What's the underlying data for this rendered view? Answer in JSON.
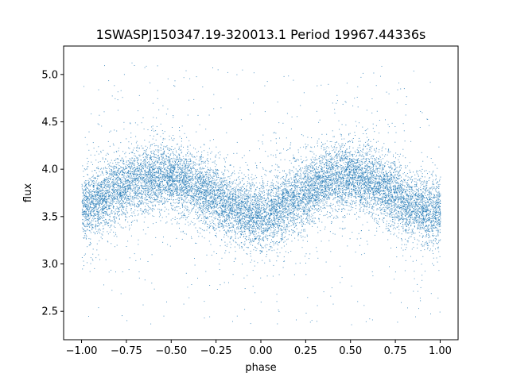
{
  "chart_data": {
    "type": "scatter",
    "title": "1SWASPJ150347.19-320013.1 Period 19967.44336s",
    "xlabel": "phase",
    "ylabel": "flux",
    "xlim": [
      -1.1,
      1.1
    ],
    "ylim": [
      2.2,
      5.3
    ],
    "x_ticks": [
      -1.0,
      -0.75,
      -0.5,
      -0.25,
      0.0,
      0.25,
      0.5,
      0.75,
      1.0
    ],
    "x_tick_labels": [
      "−1.00",
      "−0.75",
      "−0.50",
      "−0.25",
      "0.00",
      "0.25",
      "0.50",
      "0.75",
      "1.00"
    ],
    "y_ticks": [
      2.5,
      3.0,
      3.5,
      4.0,
      4.5,
      5.0
    ],
    "y_tick_labels": [
      "2.5",
      "3.0",
      "3.5",
      "4.0",
      "4.5",
      "5.0"
    ],
    "grid": false,
    "legend": "none",
    "marker_color": "#1f77b4",
    "series": [
      {
        "x": [
          -1.0,
          -0.9,
          -0.8,
          -0.7,
          -0.6,
          -0.5,
          -0.4,
          -0.3,
          -0.2,
          -0.1,
          0.0,
          0.1,
          0.2,
          0.3,
          0.4,
          0.5,
          0.6,
          0.7,
          0.8,
          0.9,
          1.0
        ],
        "y": [
          3.58,
          3.68,
          3.8,
          3.88,
          3.93,
          3.92,
          3.85,
          3.75,
          3.65,
          3.55,
          3.5,
          3.58,
          3.7,
          3.82,
          3.92,
          3.93,
          3.88,
          3.78,
          3.67,
          3.58,
          3.55
        ],
        "scatter_sd": 0.17
      }
    ]
  }
}
